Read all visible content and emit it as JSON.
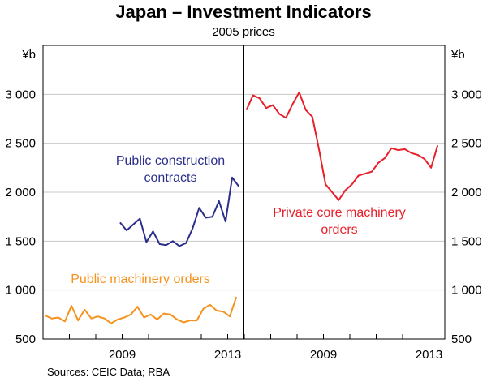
{
  "chart_data": {
    "type": "line",
    "title": "Japan – Investment Indicators",
    "subtitle": "2005 prices",
    "source": "Sources: CEIC Data; RBA",
    "yunit_left": "¥b",
    "yunit_right": "¥b",
    "ylim": [
      500,
      3500
    ],
    "yticks": [
      500,
      1000,
      1500,
      2000,
      2500,
      3000
    ],
    "ytick_labels": [
      "500",
      "1 000",
      "1 500",
      "2 000",
      "2 500",
      "3 000"
    ],
    "panels": [
      {
        "name": "left",
        "xlim": [
          2006.0,
          2013.6
        ],
        "xticks": [
          2009,
          2013
        ],
        "xtick_labels": [
          "2009",
          "2013"
        ]
      },
      {
        "name": "right",
        "xlim": [
          2006.0,
          2013.6
        ],
        "xticks": [
          2009,
          2013
        ],
        "xtick_labels": [
          "2009",
          "2013"
        ]
      }
    ],
    "series": [
      {
        "name": "Public construction contracts",
        "label_lines": [
          "Public construction",
          "contracts"
        ],
        "panel": "left",
        "color": "#2b2e8c",
        "x": [
          2008.92,
          2009.17,
          2009.42,
          2009.67,
          2009.92,
          2010.17,
          2010.42,
          2010.67,
          2010.92,
          2011.17,
          2011.42,
          2011.67,
          2011.92,
          2012.17,
          2012.42,
          2012.67,
          2012.92,
          2013.17,
          2013.42
        ],
        "values": [
          1690,
          1610,
          1670,
          1730,
          1490,
          1600,
          1470,
          1460,
          1500,
          1450,
          1480,
          1630,
          1840,
          1740,
          1750,
          1910,
          1700,
          2150,
          2060
        ]
      },
      {
        "name": "Public machinery orders",
        "label_lines": [
          "Public machinery orders"
        ],
        "panel": "left",
        "color": "#f6921e",
        "x": [
          2006.08,
          2006.33,
          2006.58,
          2006.83,
          2007.08,
          2007.33,
          2007.58,
          2007.83,
          2008.08,
          2008.33,
          2008.58,
          2008.83,
          2009.08,
          2009.33,
          2009.58,
          2009.83,
          2010.08,
          2010.33,
          2010.58,
          2010.83,
          2011.08,
          2011.33,
          2011.58,
          2011.83,
          2012.08,
          2012.33,
          2012.58,
          2012.83,
          2013.08,
          2013.33
        ],
        "values": [
          740,
          710,
          720,
          680,
          840,
          690,
          800,
          710,
          730,
          710,
          660,
          700,
          720,
          750,
          830,
          720,
          750,
          700,
          760,
          750,
          700,
          670,
          690,
          690,
          810,
          850,
          790,
          780,
          730,
          930
        ]
      },
      {
        "name": "Private core machinery orders",
        "label_lines": [
          "Private core machinery",
          "orders"
        ],
        "panel": "right",
        "color": "#e8202a",
        "x": [
          2006.08,
          2006.33,
          2006.58,
          2006.83,
          2007.08,
          2007.33,
          2007.58,
          2007.83,
          2008.08,
          2008.33,
          2008.58,
          2008.83,
          2009.08,
          2009.33,
          2009.58,
          2009.83,
          2010.08,
          2010.33,
          2010.58,
          2010.83,
          2011.08,
          2011.33,
          2011.58,
          2011.83,
          2012.08,
          2012.33,
          2012.58,
          2012.83,
          2013.08,
          2013.33
        ],
        "values": [
          2840,
          2990,
          2960,
          2860,
          2890,
          2800,
          2760,
          2900,
          3020,
          2840,
          2770,
          2440,
          2080,
          2000,
          1920,
          2020,
          2080,
          2170,
          2190,
          2210,
          2300,
          2350,
          2450,
          2430,
          2440,
          2400,
          2380,
          2340,
          2250,
          2480
        ]
      }
    ]
  }
}
